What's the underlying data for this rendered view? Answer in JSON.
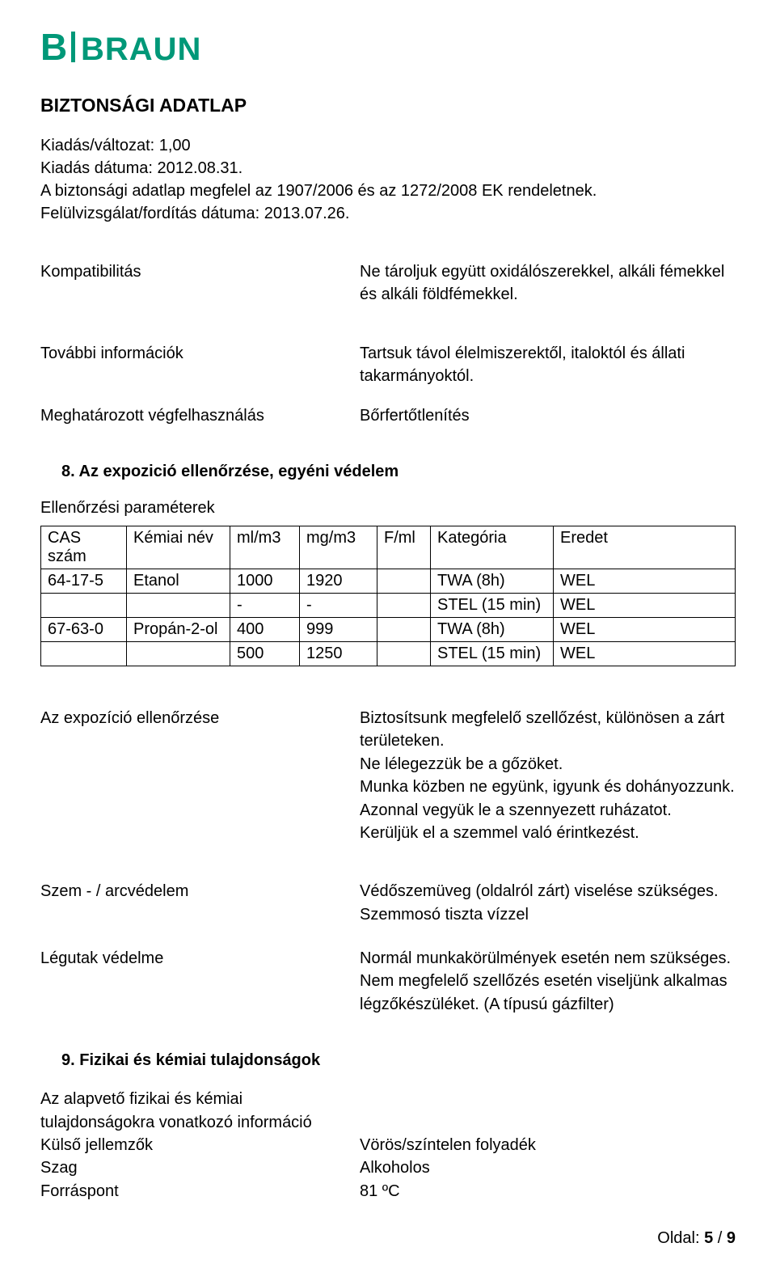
{
  "logo": {
    "text_b": "B",
    "text_braun": "BRAUN",
    "color": "#009878",
    "fontsize_b": 44,
    "fontsize_braun": 40
  },
  "header": {
    "title": "BIZTONSÁGI ADATLAP",
    "line1": "Kiadás/változat: 1,00",
    "line2": "Kiadás dátuma: 2012.08.31.",
    "line3": "A biztonsági adatlap megfelel az 1907/2006 és az 1272/2008 EK rendeletnek.",
    "line4": "Felülvizsgálat/fordítás dátuma: 2013.07.26."
  },
  "kv1": {
    "left": "Kompatibilitás",
    "right": "Ne tároljuk együtt oxidálószerekkel, alkáli fémekkel és alkáli földfémekkel."
  },
  "kv2": {
    "left": "További információk",
    "right": "Tartsuk távol élelmiszerektől, italoktól és állati takarmányoktól."
  },
  "kv3": {
    "left": "Meghatározott végfelhasználás",
    "right": " Bőrfertőtlenítés"
  },
  "section8": {
    "heading": "8. Az expozició ellenőrzése, egyéni védelem",
    "sub": "Ellenőrzési paraméterek"
  },
  "table": {
    "columns": [
      "CAS szám",
      "Kémiai név",
      "ml/m3",
      "mg/m3",
      "F/ml",
      "Kategória",
      "Eredet"
    ],
    "rows": [
      [
        "64-17-5",
        "Etanol",
        "1000",
        "1920",
        "",
        "TWA (8h)",
        "WEL"
      ],
      [
        "",
        "",
        "-",
        "-",
        "",
        "STEL (15 min)",
        "WEL"
      ],
      [
        "67-63-0",
        "Propán-2-ol",
        "400",
        "999",
        "",
        "TWA (8h)",
        "WEL"
      ],
      [
        "",
        "",
        "500",
        "1250",
        "",
        "STEL (15 min)",
        "WEL"
      ]
    ],
    "col_w": [
      "106px",
      "128px",
      "86px",
      "96px",
      "66px",
      "152px",
      "auto"
    ]
  },
  "kv4": {
    "left": "Az expozíció ellenőrzése",
    "r1": "Biztosítsunk megfelelő szellőzést, különösen a zárt területeken.",
    "r2": "Ne lélegezzük be a gőzöket.",
    "r3": "Munka közben ne együnk, igyunk és dohányozzunk.",
    "r4": "Azonnal vegyük le a szennyezett ruházatot.",
    "r5": "Kerüljük el a szemmel való érintkezést."
  },
  "kv5": {
    "left": "Szem - / arcvédelem",
    "r1": "Védőszemüveg (oldalról zárt) viselése szükséges.",
    "r2": "Szemmosó tiszta vízzel"
  },
  "kv6": {
    "left": "Légutak védelme",
    "r1": "Normál munkakörülmények esetén nem szükséges.",
    "r2": "Nem megfelelő szellőzés esetén viseljünk alkalmas légzőkészüléket. (A típusú gázfilter)"
  },
  "section9": {
    "heading": "9. Fizikai és kémiai tulajdonságok",
    "sub": "Az alapvető fizikai és kémiai tulajdonságokra vonatkozó információ"
  },
  "kv7": {
    "left": "Külső jellemzők",
    "right": "Vörös/színtelen folyadék"
  },
  "kv8": {
    "left": "Szag",
    "right": "Alkoholos"
  },
  "kv9": {
    "left": "Forráspont",
    "right": "81 ºC"
  },
  "footer": {
    "label": "Oldal: ",
    "current": "5",
    "sep": " / ",
    "total": "9"
  }
}
